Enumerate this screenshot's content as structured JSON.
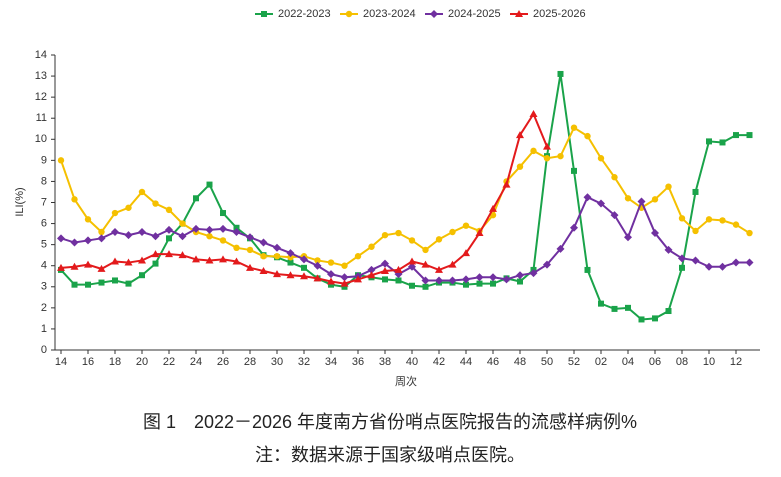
{
  "chart_data": {
    "type": "line",
    "title": "图 1　2022－2026 年度南方省份哨点医院报告的流感样病例%",
    "note": "注：数据来源于国家级哨点医院。",
    "x_label": "周次",
    "y_label": "ILI(%)",
    "categories": [
      "14",
      null,
      "16",
      null,
      "18",
      null,
      "20",
      null,
      "22",
      null,
      "24",
      null,
      "26",
      null,
      "28",
      null,
      "30",
      null,
      "32",
      null,
      "34",
      null,
      "36",
      null,
      "38",
      null,
      "40",
      null,
      "42",
      null,
      "44",
      null,
      "46",
      null,
      "48",
      null,
      "50",
      null,
      "52",
      null,
      "02",
      null,
      "04",
      null,
      "06",
      null,
      "08",
      null,
      "10",
      null,
      "12",
      null
    ],
    "ylim": [
      0,
      14
    ],
    "yticks": [
      0,
      1,
      2,
      3,
      4,
      5,
      6,
      7,
      8,
      9,
      10,
      11,
      12,
      13,
      14
    ],
    "legend": "top",
    "series": [
      {
        "name": "2022-2023",
        "color": "#1aa34a",
        "marker": "square",
        "values": [
          3.8,
          3.1,
          3.1,
          3.2,
          3.3,
          3.15,
          3.55,
          4.1,
          5.3,
          6.0,
          7.2,
          7.85,
          6.5,
          5.8,
          5.3,
          4.5,
          4.4,
          4.15,
          3.9,
          3.4,
          3.1,
          3.0,
          3.55,
          3.45,
          3.35,
          3.3,
          3.05,
          3.0,
          3.2,
          3.2,
          3.1,
          3.15,
          3.15,
          3.4,
          3.25,
          3.8,
          9.2,
          13.1,
          8.5,
          3.8,
          2.2,
          1.95,
          2.0,
          1.45,
          1.5,
          1.85,
          3.9,
          7.5,
          9.9,
          9.85,
          10.2,
          10.2
        ]
      },
      {
        "name": "2023-2024",
        "color": "#f5c000",
        "marker": "circle",
        "values": [
          9.0,
          7.15,
          6.2,
          5.6,
          6.5,
          6.75,
          7.5,
          6.95,
          6.65,
          6.0,
          5.6,
          5.4,
          5.2,
          4.85,
          4.75,
          4.45,
          4.45,
          4.4,
          4.45,
          4.25,
          4.15,
          4.0,
          4.45,
          4.9,
          5.45,
          5.55,
          5.2,
          4.75,
          5.25,
          5.6,
          5.9,
          5.65,
          6.4,
          8.0,
          8.7,
          9.45,
          9.1,
          9.2,
          10.55,
          10.15,
          9.1,
          8.2,
          7.2,
          6.75,
          7.15,
          7.75,
          6.25,
          5.65,
          6.2,
          6.15,
          5.95,
          5.55
        ]
      },
      {
        "name": "2024-2025",
        "color": "#7030a0",
        "marker": "diamond",
        "values": [
          5.3,
          5.1,
          5.2,
          5.3,
          5.6,
          5.45,
          5.6,
          5.4,
          5.7,
          5.4,
          5.75,
          5.7,
          5.75,
          5.6,
          5.35,
          5.1,
          4.85,
          4.6,
          4.3,
          4.0,
          3.6,
          3.45,
          3.5,
          3.8,
          4.1,
          3.6,
          3.95,
          3.3,
          3.3,
          3.3,
          3.35,
          3.45,
          3.45,
          3.35,
          3.55,
          3.65,
          4.05,
          4.8,
          5.8,
          7.25,
          6.95,
          6.4,
          5.35,
          7.05,
          5.55,
          4.75,
          4.35,
          4.25,
          3.95,
          3.95,
          4.15,
          4.15
        ]
      },
      {
        "name": "2025-2026",
        "color": "#e31a1c",
        "marker": "triangle",
        "values": [
          3.9,
          3.95,
          4.05,
          3.85,
          4.2,
          4.15,
          4.25,
          4.55,
          4.55,
          4.5,
          4.3,
          4.25,
          4.3,
          4.2,
          3.9,
          3.75,
          3.6,
          3.55,
          3.5,
          3.4,
          3.25,
          3.15,
          3.35,
          3.55,
          3.75,
          3.8,
          4.2,
          4.05,
          3.8,
          4.05,
          4.6,
          5.55,
          6.7,
          7.85,
          10.2,
          11.2,
          9.65,
          null,
          null,
          null,
          null,
          null,
          null,
          null,
          null,
          null,
          null,
          null,
          null,
          null,
          null,
          null
        ]
      }
    ]
  }
}
